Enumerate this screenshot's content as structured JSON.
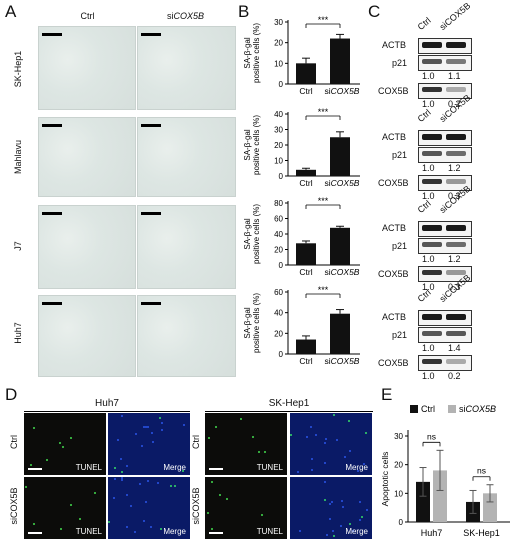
{
  "panelA": {
    "letter": "A",
    "col_ctrl": "Ctrl",
    "col_si_prefix": "si",
    "col_si_gene": "COX5B",
    "rows": [
      "SK-Hep1",
      "Mahlavu",
      "J7",
      "Huh7"
    ]
  },
  "panelB": {
    "letter": "B",
    "ylabel_line1": "SA-β-gal",
    "ylabel_line2": "positive cells (%)",
    "sig": "***",
    "cat_ctrl": "Ctrl",
    "cat_si_prefix": "si",
    "cat_si_gene": "COX5B"
  },
  "panelC": {
    "letter": "C",
    "lane_ctrl": "Ctrl",
    "lane_si": "siCOX5B",
    "blots": [
      {
        "actb": "ACTB",
        "p21": "p21",
        "cox": "COX5B",
        "p21_q": [
          "1.0",
          "1.1"
        ],
        "cox_q": [
          "1.0",
          "0.2"
        ]
      },
      {
        "actb": "ACTB",
        "p21": "p21",
        "cox": "COX5B",
        "p21_q": [
          "1.0",
          "1.2"
        ],
        "cox_q": [
          "1.0",
          "0.3"
        ]
      },
      {
        "actb": "ACTB",
        "p21": "p21",
        "cox": "COX5B",
        "p21_q": [
          "1.0",
          "1.2"
        ],
        "cox_q": [
          "1.0",
          "0.3"
        ]
      },
      {
        "actb": "ACTB",
        "p21": "p21",
        "cox": "COX5B",
        "p21_q": [
          "1.0",
          "1.4"
        ],
        "cox_q": [
          "1.0",
          "0.2"
        ]
      }
    ]
  },
  "panelD": {
    "letter": "D",
    "groups": [
      "Huh7",
      "SK-Hep1"
    ],
    "row_ctrl": "Ctrl",
    "row_si": "siCOX5B",
    "tunel": "TUNEL",
    "merge": "Merge"
  },
  "panelE": {
    "letter": "E",
    "legend_ctrl": "Ctrl",
    "legend_si_prefix": "si",
    "legend_si_gene": "COX5B",
    "ylabel": "Apoptotic cells",
    "ns": "ns",
    "colors": {
      "ctrl": "#111111",
      "si": "#b3b3b3"
    }
  },
  "chart_data": [
    {
      "type": "bar",
      "ylabel": "SA-β-gal positive cells (%)",
      "categories": [
        "Ctrl",
        "siCOX5B"
      ],
      "values": [
        10,
        22
      ],
      "errors": [
        2.5,
        2
      ],
      "ylim": [
        0,
        30
      ],
      "yticks": [
        0,
        10,
        20,
        30
      ],
      "annotation": "***"
    },
    {
      "type": "bar",
      "ylabel": "SA-β-gal positive cells (%)",
      "categories": [
        "Ctrl",
        "siCOX5B"
      ],
      "values": [
        4,
        25
      ],
      "errors": [
        1,
        3.5
      ],
      "ylim": [
        0,
        40
      ],
      "yticks": [
        0,
        10,
        20,
        30,
        40
      ],
      "annotation": "***"
    },
    {
      "type": "bar",
      "ylabel": "SA-β-gal positive cells (%)",
      "categories": [
        "Ctrl",
        "siCOX5B"
      ],
      "values": [
        28,
        48
      ],
      "errors": [
        3,
        2
      ],
      "ylim": [
        0,
        80
      ],
      "yticks": [
        0,
        20,
        40,
        60,
        80
      ],
      "annotation": "***"
    },
    {
      "type": "bar",
      "ylabel": "SA-β-gal positive cells (%)",
      "categories": [
        "Ctrl",
        "siCOX5B"
      ],
      "values": [
        14,
        39
      ],
      "errors": [
        3.5,
        4
      ],
      "ylim": [
        0,
        60
      ],
      "yticks": [
        0,
        20,
        40,
        60
      ],
      "annotation": "***"
    },
    {
      "type": "bar",
      "ylabel": "Apoptotic cells",
      "categories": [
        "Huh7",
        "SK-Hep1"
      ],
      "series": [
        {
          "name": "Ctrl",
          "values": [
            14,
            7
          ],
          "errors": [
            5,
            4
          ]
        },
        {
          "name": "siCOX5B",
          "values": [
            18,
            10
          ],
          "errors": [
            7,
            3
          ]
        }
      ],
      "ylim": [
        0,
        30
      ],
      "yticks": [
        0,
        10,
        20,
        30
      ],
      "annotations": [
        "ns",
        "ns"
      ]
    }
  ]
}
